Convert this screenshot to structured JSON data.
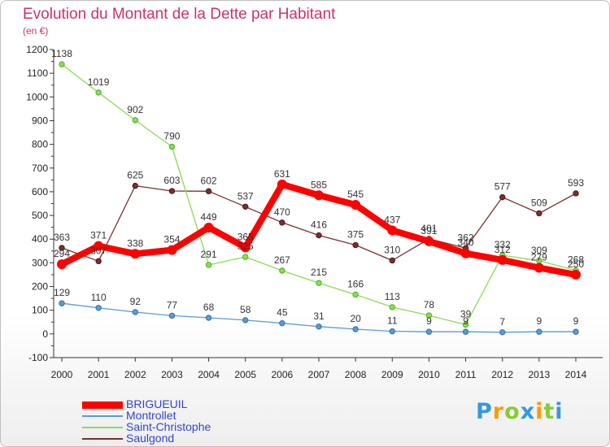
{
  "chart_data": {
    "type": "line",
    "title": "Evolution du Montant de la Dette par Habitant",
    "subtitle": "(en €)",
    "x": [
      "2000",
      "2001",
      "2002",
      "2003",
      "2004",
      "2005",
      "2006",
      "2007",
      "2008",
      "2009",
      "2010",
      "2011",
      "2012",
      "2013",
      "2014"
    ],
    "ylim": [
      -100,
      1200
    ],
    "yticks": [
      -100,
      0,
      100,
      200,
      300,
      400,
      500,
      600,
      700,
      800,
      900,
      1000,
      1100,
      1200
    ],
    "grid": false,
    "legend": "bottom-left",
    "series": [
      {
        "name": "BRIGUEUIL",
        "color": "#ff0000",
        "values": [
          294,
          371,
          338,
          354,
          449,
          365,
          631,
          585,
          545,
          437,
          391,
          340,
          312,
          279,
          250
        ]
      },
      {
        "name": "Montrollet",
        "color": "#5b9bd5",
        "values": [
          129,
          110,
          92,
          77,
          68,
          58,
          45,
          31,
          20,
          11,
          9,
          9,
          7,
          9,
          9
        ]
      },
      {
        "name": "Saint-Christophe",
        "color": "#88dd55",
        "values": [
          1138,
          1019,
          902,
          790,
          291,
          325,
          267,
          215,
          166,
          113,
          78,
          39,
          332,
          309,
          268
        ]
      },
      {
        "name": "Saulgond",
        "color": "#7a2f2f",
        "values": [
          363,
          307,
          625,
          603,
          602,
          537,
          470,
          416,
          375,
          310,
          401,
          362,
          577,
          509,
          593
        ]
      }
    ]
  },
  "branding": {
    "logo_text": "Proxiti",
    "logo_colors": [
      "#3399dd",
      "#ff9900",
      "#88cc33",
      "#3399dd",
      "#ff9900",
      "#88cc33",
      "#3399dd"
    ]
  }
}
